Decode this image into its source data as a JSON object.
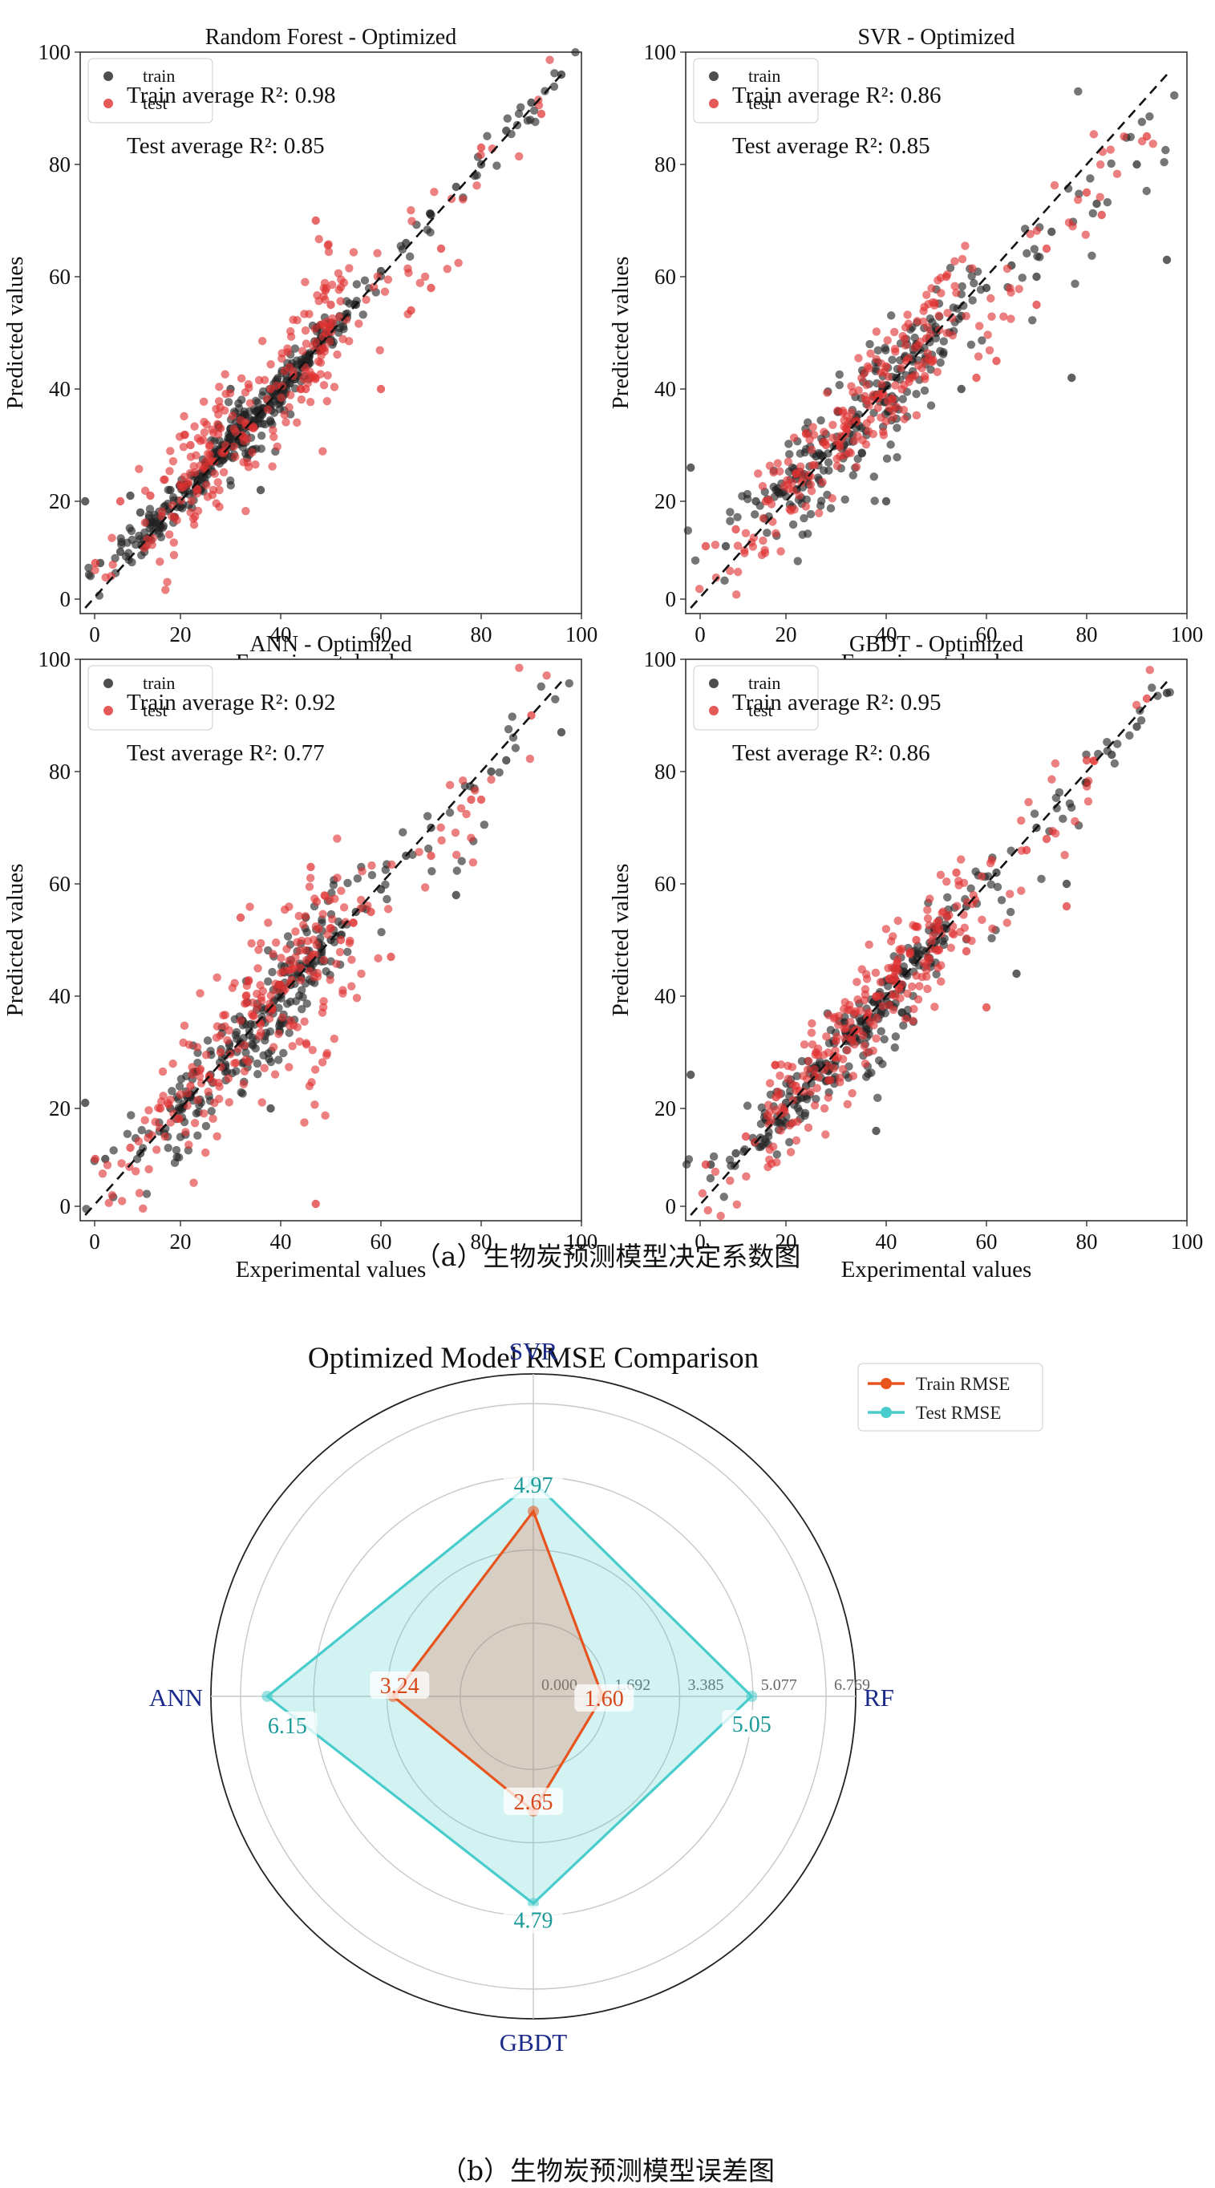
{
  "figure_a_caption": "（a）生物炭预测模型决定系数图",
  "figure_b_caption": "（b）生物炭预测模型误差图",
  "chart_data": [
    {
      "type": "scatter",
      "title": "Random Forest - Optimized",
      "xlabel": "Experimental values",
      "ylabel": "Predicted values",
      "xlim": [
        0,
        100
      ],
      "ylim": [
        0,
        100
      ],
      "xticks": [
        "0",
        "20",
        "40",
        "60",
        "80",
        "100"
      ],
      "yticks": [
        "0",
        "20",
        "40",
        "60",
        "80",
        "100"
      ],
      "legend": [
        "train",
        "test"
      ],
      "legend_position": "top-left",
      "annotations": [
        "Train average R²: 0.98",
        "Test average R²: 0.85"
      ],
      "spread": {
        "train": 1.8,
        "test": 5.5
      },
      "series": [
        {
          "name": "train",
          "color": "#222222",
          "points": [
            [
              1,
              20
            ],
            [
              4,
              9
            ],
            [
              8,
              11
            ],
            [
              10,
              21
            ],
            [
              12,
              18
            ],
            [
              15,
              16
            ],
            [
              18,
              22
            ],
            [
              20,
              19
            ],
            [
              24,
              25
            ],
            [
              28,
              29
            ],
            [
              30,
              33
            ],
            [
              32,
              31
            ],
            [
              35,
              36
            ],
            [
              38,
              37
            ],
            [
              40,
              40
            ],
            [
              42,
              44
            ],
            [
              45,
              45
            ],
            [
              48,
              49
            ],
            [
              50,
              51
            ],
            [
              55,
              55
            ],
            [
              60,
              61
            ],
            [
              65,
              66
            ],
            [
              70,
              71
            ],
            [
              75,
              76
            ],
            [
              80,
              80
            ],
            [
              85,
              86
            ],
            [
              90,
              91
            ],
            [
              96,
              96
            ],
            [
              36,
              22
            ],
            [
              30,
              40
            ]
          ]
        },
        {
          "name": "test",
          "color": "#e03030",
          "points": [
            [
              3,
              9
            ],
            [
              8,
              20
            ],
            [
              14,
              21
            ],
            [
              20,
              23
            ],
            [
              22,
              30
            ],
            [
              25,
              26
            ],
            [
              28,
              33
            ],
            [
              33,
              34
            ],
            [
              38,
              40
            ],
            [
              45,
              40
            ],
            [
              47,
              70
            ],
            [
              49,
              50
            ],
            [
              50,
              55
            ],
            [
              60,
              40
            ],
            [
              66,
              54
            ],
            [
              70,
              58
            ],
            [
              72,
              65
            ],
            [
              80,
              83
            ],
            [
              92,
              89
            ]
          ]
        }
      ]
    },
    {
      "type": "scatter",
      "title": "SVR - Optimized",
      "xlabel": "Experimental values",
      "ylabel": "Predicted values",
      "xlim": [
        0,
        100
      ],
      "ylim": [
        0,
        100
      ],
      "xticks": [
        "0",
        "20",
        "40",
        "60",
        "80",
        "100"
      ],
      "yticks": [
        "0",
        "20",
        "40",
        "60",
        "80",
        "100"
      ],
      "legend": [
        "train",
        "test"
      ],
      "legend_position": "top-left",
      "annotations": [
        "Train average R²: 0.86",
        "Test average R²: 0.85"
      ],
      "spread": {
        "train": 4.8,
        "test": 5.2
      },
      "series": [
        {
          "name": "train",
          "color": "#222222",
          "points": [
            [
              1,
              26
            ],
            [
              8,
              12
            ],
            [
              14,
              20
            ],
            [
              18,
              22
            ],
            [
              22,
              24
            ],
            [
              26,
              28
            ],
            [
              30,
              30
            ],
            [
              34,
              35
            ],
            [
              38,
              39
            ],
            [
              42,
              42
            ],
            [
              46,
              48
            ],
            [
              50,
              50
            ],
            [
              55,
              53
            ],
            [
              60,
              58
            ],
            [
              65,
              62
            ],
            [
              70,
              60
            ],
            [
              73,
              68
            ],
            [
              77,
              42
            ],
            [
              82,
              73
            ],
            [
              90,
              80
            ],
            [
              96,
              63
            ],
            [
              40,
              20
            ],
            [
              55,
              40
            ]
          ]
        },
        {
          "name": "test",
          "color": "#e03030",
          "points": [
            [
              4,
              12
            ],
            [
              10,
              15
            ],
            [
              16,
              20
            ],
            [
              22,
              25
            ],
            [
              28,
              30
            ],
            [
              32,
              33
            ],
            [
              36,
              38
            ],
            [
              40,
              44
            ],
            [
              44,
              45
            ],
            [
              48,
              49
            ],
            [
              52,
              60
            ],
            [
              58,
              42
            ],
            [
              62,
              45
            ],
            [
              70,
              55
            ],
            [
              72,
              65
            ],
            [
              80,
              75
            ],
            [
              83,
              71
            ],
            [
              92,
              85
            ]
          ]
        }
      ]
    },
    {
      "type": "scatter",
      "title": "ANN - Optimized",
      "xlabel": "Experimental values",
      "ylabel": "Predicted values",
      "xlim": [
        0,
        100
      ],
      "ylim": [
        0,
        100
      ],
      "xticks": [
        "0",
        "20",
        "40",
        "60",
        "80",
        "100"
      ],
      "yticks": [
        "0",
        "20",
        "40",
        "60",
        "80",
        "100"
      ],
      "legend": [
        "train",
        "test"
      ],
      "legend_position": "top-left",
      "annotations": [
        "Train average R²: 0.92",
        "Test average R²: 0.77"
      ],
      "spread": {
        "train": 4.0,
        "test": 6.0
      },
      "series": [
        {
          "name": "train",
          "color": "#222222",
          "points": [
            [
              1,
              21
            ],
            [
              5,
              11
            ],
            [
              12,
              12
            ],
            [
              18,
              20
            ],
            [
              22,
              22
            ],
            [
              26,
              26
            ],
            [
              30,
              30
            ],
            [
              34,
              35
            ],
            [
              38,
              38
            ],
            [
              42,
              42
            ],
            [
              46,
              45
            ],
            [
              50,
              50
            ],
            [
              55,
              55
            ],
            [
              60,
              59
            ],
            [
              65,
              65
            ],
            [
              70,
              70
            ],
            [
              75,
              58
            ],
            [
              82,
              80
            ],
            [
              85,
              82
            ],
            [
              96,
              87
            ],
            [
              38,
              20
            ],
            [
              45,
              54
            ]
          ]
        },
        {
          "name": "test",
          "color": "#e03030",
          "points": [
            [
              3,
              11
            ],
            [
              10,
              13
            ],
            [
              16,
              20
            ],
            [
              22,
              24
            ],
            [
              28,
              30
            ],
            [
              32,
              54
            ],
            [
              36,
              35
            ],
            [
              40,
              42
            ],
            [
              44,
              45
            ],
            [
              46,
              63
            ],
            [
              47,
              3
            ],
            [
              52,
              50
            ],
            [
              58,
              55
            ],
            [
              62,
              47
            ],
            [
              70,
              65
            ],
            [
              78,
              75
            ],
            [
              80,
              75
            ],
            [
              90,
              90
            ]
          ]
        }
      ]
    },
    {
      "type": "scatter",
      "title": "GBDT - Optimized",
      "xlabel": "Experimental values",
      "ylabel": "Predicted values",
      "xlim": [
        0,
        100
      ],
      "ylim": [
        0,
        100
      ],
      "xticks": [
        "0",
        "20",
        "40",
        "60",
        "80",
        "100"
      ],
      "yticks": [
        "0",
        "20",
        "40",
        "60",
        "80",
        "100"
      ],
      "legend": [
        "train",
        "test"
      ],
      "legend_position": "top-left",
      "annotations": [
        "Train average R²: 0.95",
        "Test average R²: 0.86"
      ],
      "spread": {
        "train": 3.0,
        "test": 5.0
      },
      "series": [
        {
          "name": "train",
          "color": "#222222",
          "points": [
            [
              1,
              26
            ],
            [
              5,
              10
            ],
            [
              10,
              12
            ],
            [
              16,
              18
            ],
            [
              20,
              21
            ],
            [
              24,
              24
            ],
            [
              28,
              28
            ],
            [
              32,
              32
            ],
            [
              36,
              36
            ],
            [
              40,
              40
            ],
            [
              44,
              44
            ],
            [
              48,
              48
            ],
            [
              52,
              52
            ],
            [
              56,
              56
            ],
            [
              62,
              62
            ],
            [
              66,
              44
            ],
            [
              70,
              70
            ],
            [
              76,
              60
            ],
            [
              80,
              78
            ],
            [
              85,
              83
            ],
            [
              90,
              88
            ],
            [
              96,
              94
            ],
            [
              38,
              16
            ]
          ]
        },
        {
          "name": "test",
          "color": "#e03030",
          "points": [
            [
              4,
              10
            ],
            [
              12,
              15
            ],
            [
              18,
              22
            ],
            [
              22,
              24
            ],
            [
              26,
              30
            ],
            [
              30,
              32
            ],
            [
              34,
              34
            ],
            [
              38,
              40
            ],
            [
              42,
              45
            ],
            [
              46,
              50
            ],
            [
              50,
              52
            ],
            [
              54,
              62
            ],
            [
              56,
              48
            ],
            [
              60,
              38
            ],
            [
              68,
              66
            ],
            [
              72,
              68
            ],
            [
              76,
              56
            ],
            [
              80,
              82
            ],
            [
              92,
              93
            ]
          ]
        }
      ]
    },
    {
      "type": "radar",
      "title": "Optimized Model RMSE Comparison",
      "axes": [
        "SVR",
        "RF",
        "GBDT",
        "ANN"
      ],
      "radial_max": 6.769,
      "radial_ticks": [
        "0.000",
        "1.692",
        "3.385",
        "5.077",
        "6.769"
      ],
      "legend_position": "top-right",
      "series": [
        {
          "name": "Train RMSE",
          "color": "#e8541e",
          "values": [
            4.28,
            1.6,
            2.65,
            3.24
          ],
          "labels": [
            "",
            "1.60",
            "2.65",
            "3.24"
          ]
        },
        {
          "name": "Test RMSE",
          "color": "#48cccc",
          "values": [
            4.97,
            5.05,
            4.79,
            6.15
          ],
          "labels": [
            "4.97",
            "5.05",
            "4.79",
            "6.15"
          ]
        }
      ]
    }
  ]
}
